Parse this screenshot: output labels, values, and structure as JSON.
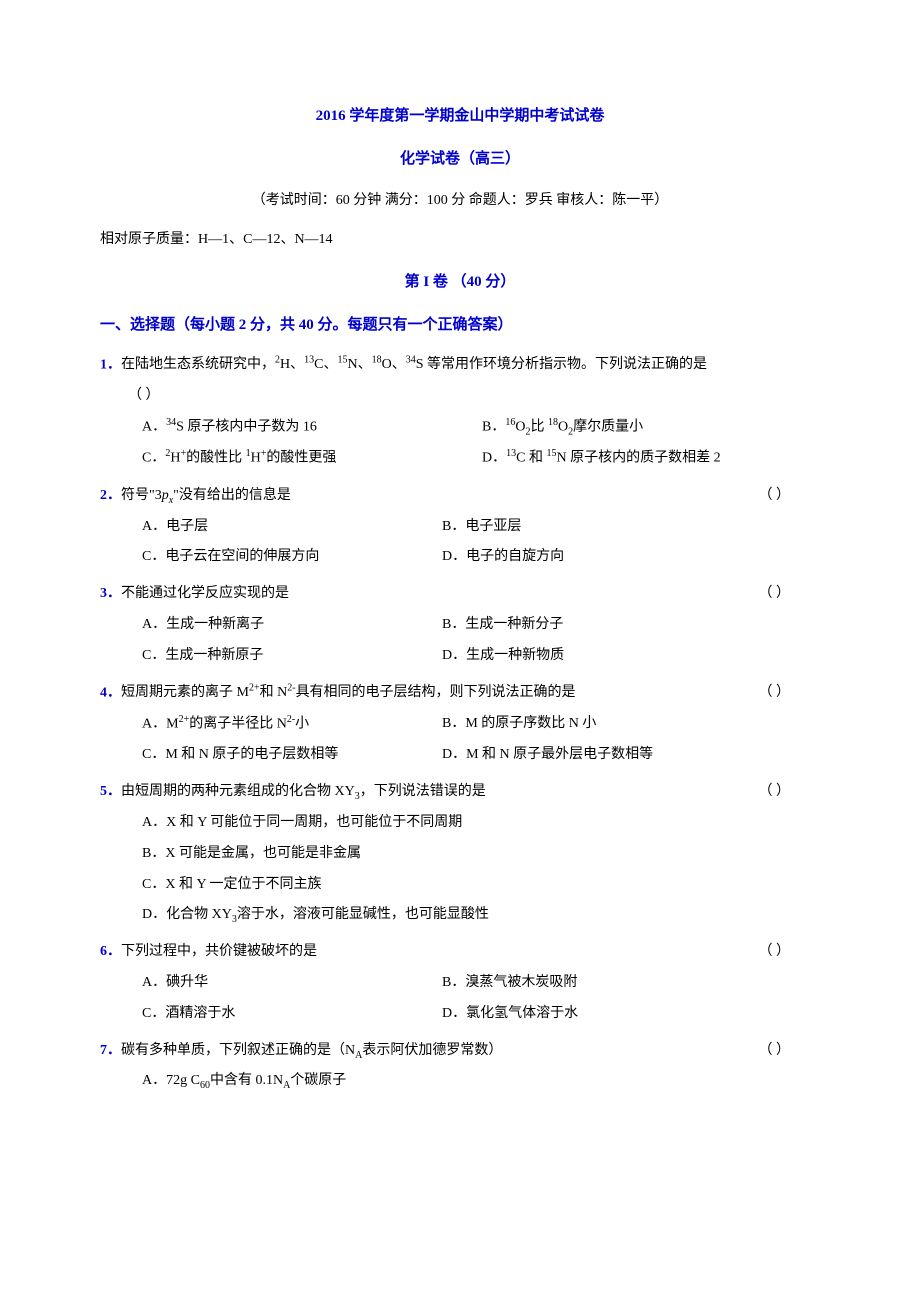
{
  "header": {
    "title": "2016 学年度第一学期金山中学期中考试试卷",
    "subtitle": "化学试卷（高三）",
    "exam_info": "（考试时间：60 分钟   满分：100 分   命题人：罗兵   审核人：陈一平）",
    "atomic_mass": "相对原子质量：H—1、C—12、N—14",
    "part_title": "第 I 卷  （40 分）",
    "section_header": "一、选择题（每小题 2 分，共 40 分。每题只有一个正确答案）"
  },
  "q1": {
    "num": "1．",
    "text_part1": "在陆地生态系统研究中，",
    "text_part2": "H、",
    "text_part3": "C、",
    "text_part4": "N、",
    "text_part5": "O、",
    "text_part6": "S 等常用作环境分析指示物。下列说法正确的是",
    "paren": "（     ）",
    "optA_pre": "A．",
    "optA_mid": "S 原子核内中子数为 16",
    "optB_pre": "B．",
    "optB_mid1": "O",
    "optB_mid2": "比 ",
    "optB_mid3": "O",
    "optB_mid4": "摩尔质量小",
    "optC_pre": "C．",
    "optC_mid1": "H",
    "optC_mid2": "的酸性比 ",
    "optC_mid3": "H",
    "optC_mid4": "的酸性更强",
    "optD_pre": "D．",
    "optD_mid1": "C 和 ",
    "optD_mid2": "N 原子核内的质子数相差 2"
  },
  "q2": {
    "num": "2．",
    "text_part1": "符号\"3",
    "text_part2": "\"没有给出的信息是",
    "paren": "（     ）",
    "optA": "A．电子层",
    "optB": "B．电子亚层",
    "optC": "C．电子云在空间的伸展方向",
    "optD": "D．电子的自旋方向"
  },
  "q3": {
    "num": "3．",
    "text": "不能通过化学反应实现的是",
    "paren": "（     ）",
    "optA": "A．生成一种新离子",
    "optB": "B．生成一种新分子",
    "optC": "C．生成一种新原子",
    "optD": "D．生成一种新物质"
  },
  "q4": {
    "num": "4．",
    "text_part1": "短周期元素的离子 M",
    "text_part2": "和 N",
    "text_part3": "具有相同的电子层结构，则下列说法正确的是",
    "paren": "（     ）",
    "optA_pre": "A．M",
    "optA_mid": "的离子半径比 N",
    "optA_suf": "小",
    "optB": "B．M 的原子序数比 N 小",
    "optC": "C．M 和 N 原子的电子层数相等",
    "optD": "D．M 和 N 原子最外层电子数相等"
  },
  "q5": {
    "num": "5．",
    "text_part1": "由短周期的两种元素组成的化合物 XY",
    "text_part2": "，下列说法错误的是",
    "paren": "（     ）",
    "optA": "A．X 和 Y 可能位于同一周期，也可能位于不同周期",
    "optB": "B．X 可能是金属，也可能是非金属",
    "optC": "C．X 和 Y 一定位于不同主族",
    "optD_pre": "D．化合物 XY",
    "optD_suf": "溶于水，溶液可能显碱性，也可能显酸性"
  },
  "q6": {
    "num": "6．",
    "text": "下列过程中，共价键被破坏的是",
    "paren": "（     ）",
    "optA": "A．碘升华",
    "optB": "B．溴蒸气被木炭吸附",
    "optC": "C．酒精溶于水",
    "optD": "D．氯化氢气体溶于水"
  },
  "q7": {
    "num": "7．",
    "text_part1": "碳有多种单质，下列叙述正确的是（N",
    "text_part2": "表示阿伏加德罗常数）",
    "paren": "（     ）",
    "optA_pre": "A．72g C",
    "optA_mid": "中含有 0.1N",
    "optA_suf": "个碳原子"
  }
}
